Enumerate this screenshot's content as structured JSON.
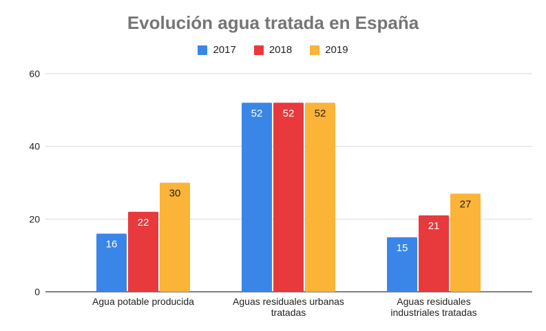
{
  "chart_data": {
    "type": "bar",
    "title": "Evolución agua tratada en España",
    "xlabel": "",
    "ylabel": "",
    "ylim": [
      0,
      60
    ],
    "yticks": [
      0,
      20,
      40,
      60
    ],
    "grid": true,
    "legend_position": "top",
    "categories": [
      [
        "Agua potable producida"
      ],
      [
        "Aguas residuales urbanas",
        "tratadas"
      ],
      [
        "Aguas residuales",
        "industriales tratadas"
      ]
    ],
    "series": [
      {
        "name": "2017",
        "color": "#3a86e8",
        "values": [
          16,
          52,
          15
        ]
      },
      {
        "name": "2018",
        "color": "#e8393d",
        "values": [
          22,
          52,
          21
        ]
      },
      {
        "name": "2019",
        "color": "#fbb437",
        "values": [
          30,
          52,
          27
        ]
      }
    ],
    "label_colors": [
      "#ffffff",
      "#ffffff",
      "#222222"
    ]
  }
}
